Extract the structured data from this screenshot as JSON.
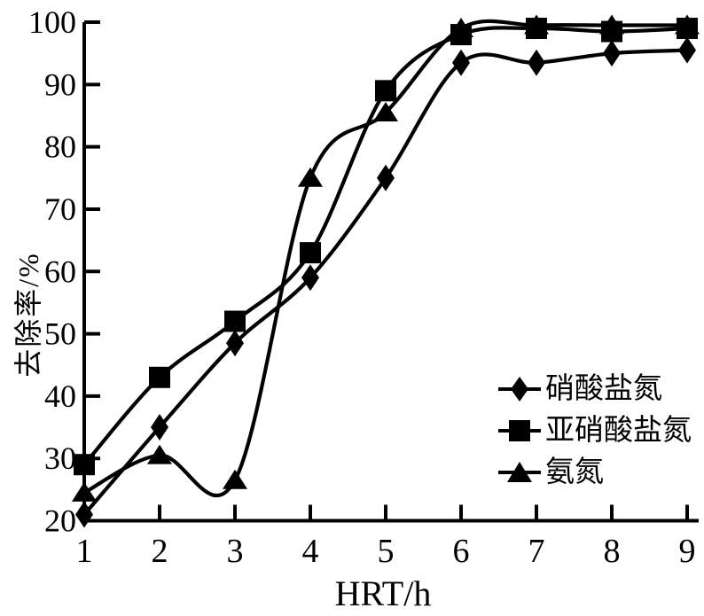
{
  "figure": {
    "background": "#ffffff",
    "foreground": "#000000"
  },
  "chart_data": {
    "type": "line",
    "title": "",
    "xlabel": "HRT/h",
    "ylabel": "去除率/%",
    "x": [
      1,
      2,
      3,
      4,
      5,
      6,
      7,
      8,
      9
    ],
    "xticks": [
      1,
      2,
      3,
      4,
      5,
      6,
      7,
      8,
      9
    ],
    "yticks": [
      20,
      30,
      40,
      50,
      60,
      70,
      80,
      90,
      100
    ],
    "xlim": [
      1,
      9
    ],
    "ylim": [
      20,
      100
    ],
    "grid": false,
    "legend_position": "right-middle",
    "line_color": "#000000",
    "curve_style": "smooth-spline",
    "series": [
      {
        "name": "硝酸盐氮",
        "marker": "diamond",
        "values": [
          21,
          35,
          48.5,
          59,
          75,
          93.5,
          93.5,
          95,
          95.5
        ]
      },
      {
        "name": "亚硝酸盐氮",
        "marker": "square",
        "values": [
          29,
          43,
          52,
          63,
          89,
          98,
          99,
          98.5,
          99
        ]
      },
      {
        "name": "氨氮",
        "marker": "triangle",
        "values": [
          24.5,
          30.5,
          26.5,
          75,
          85.5,
          99,
          99.5,
          99.5,
          99.5
        ]
      }
    ]
  }
}
